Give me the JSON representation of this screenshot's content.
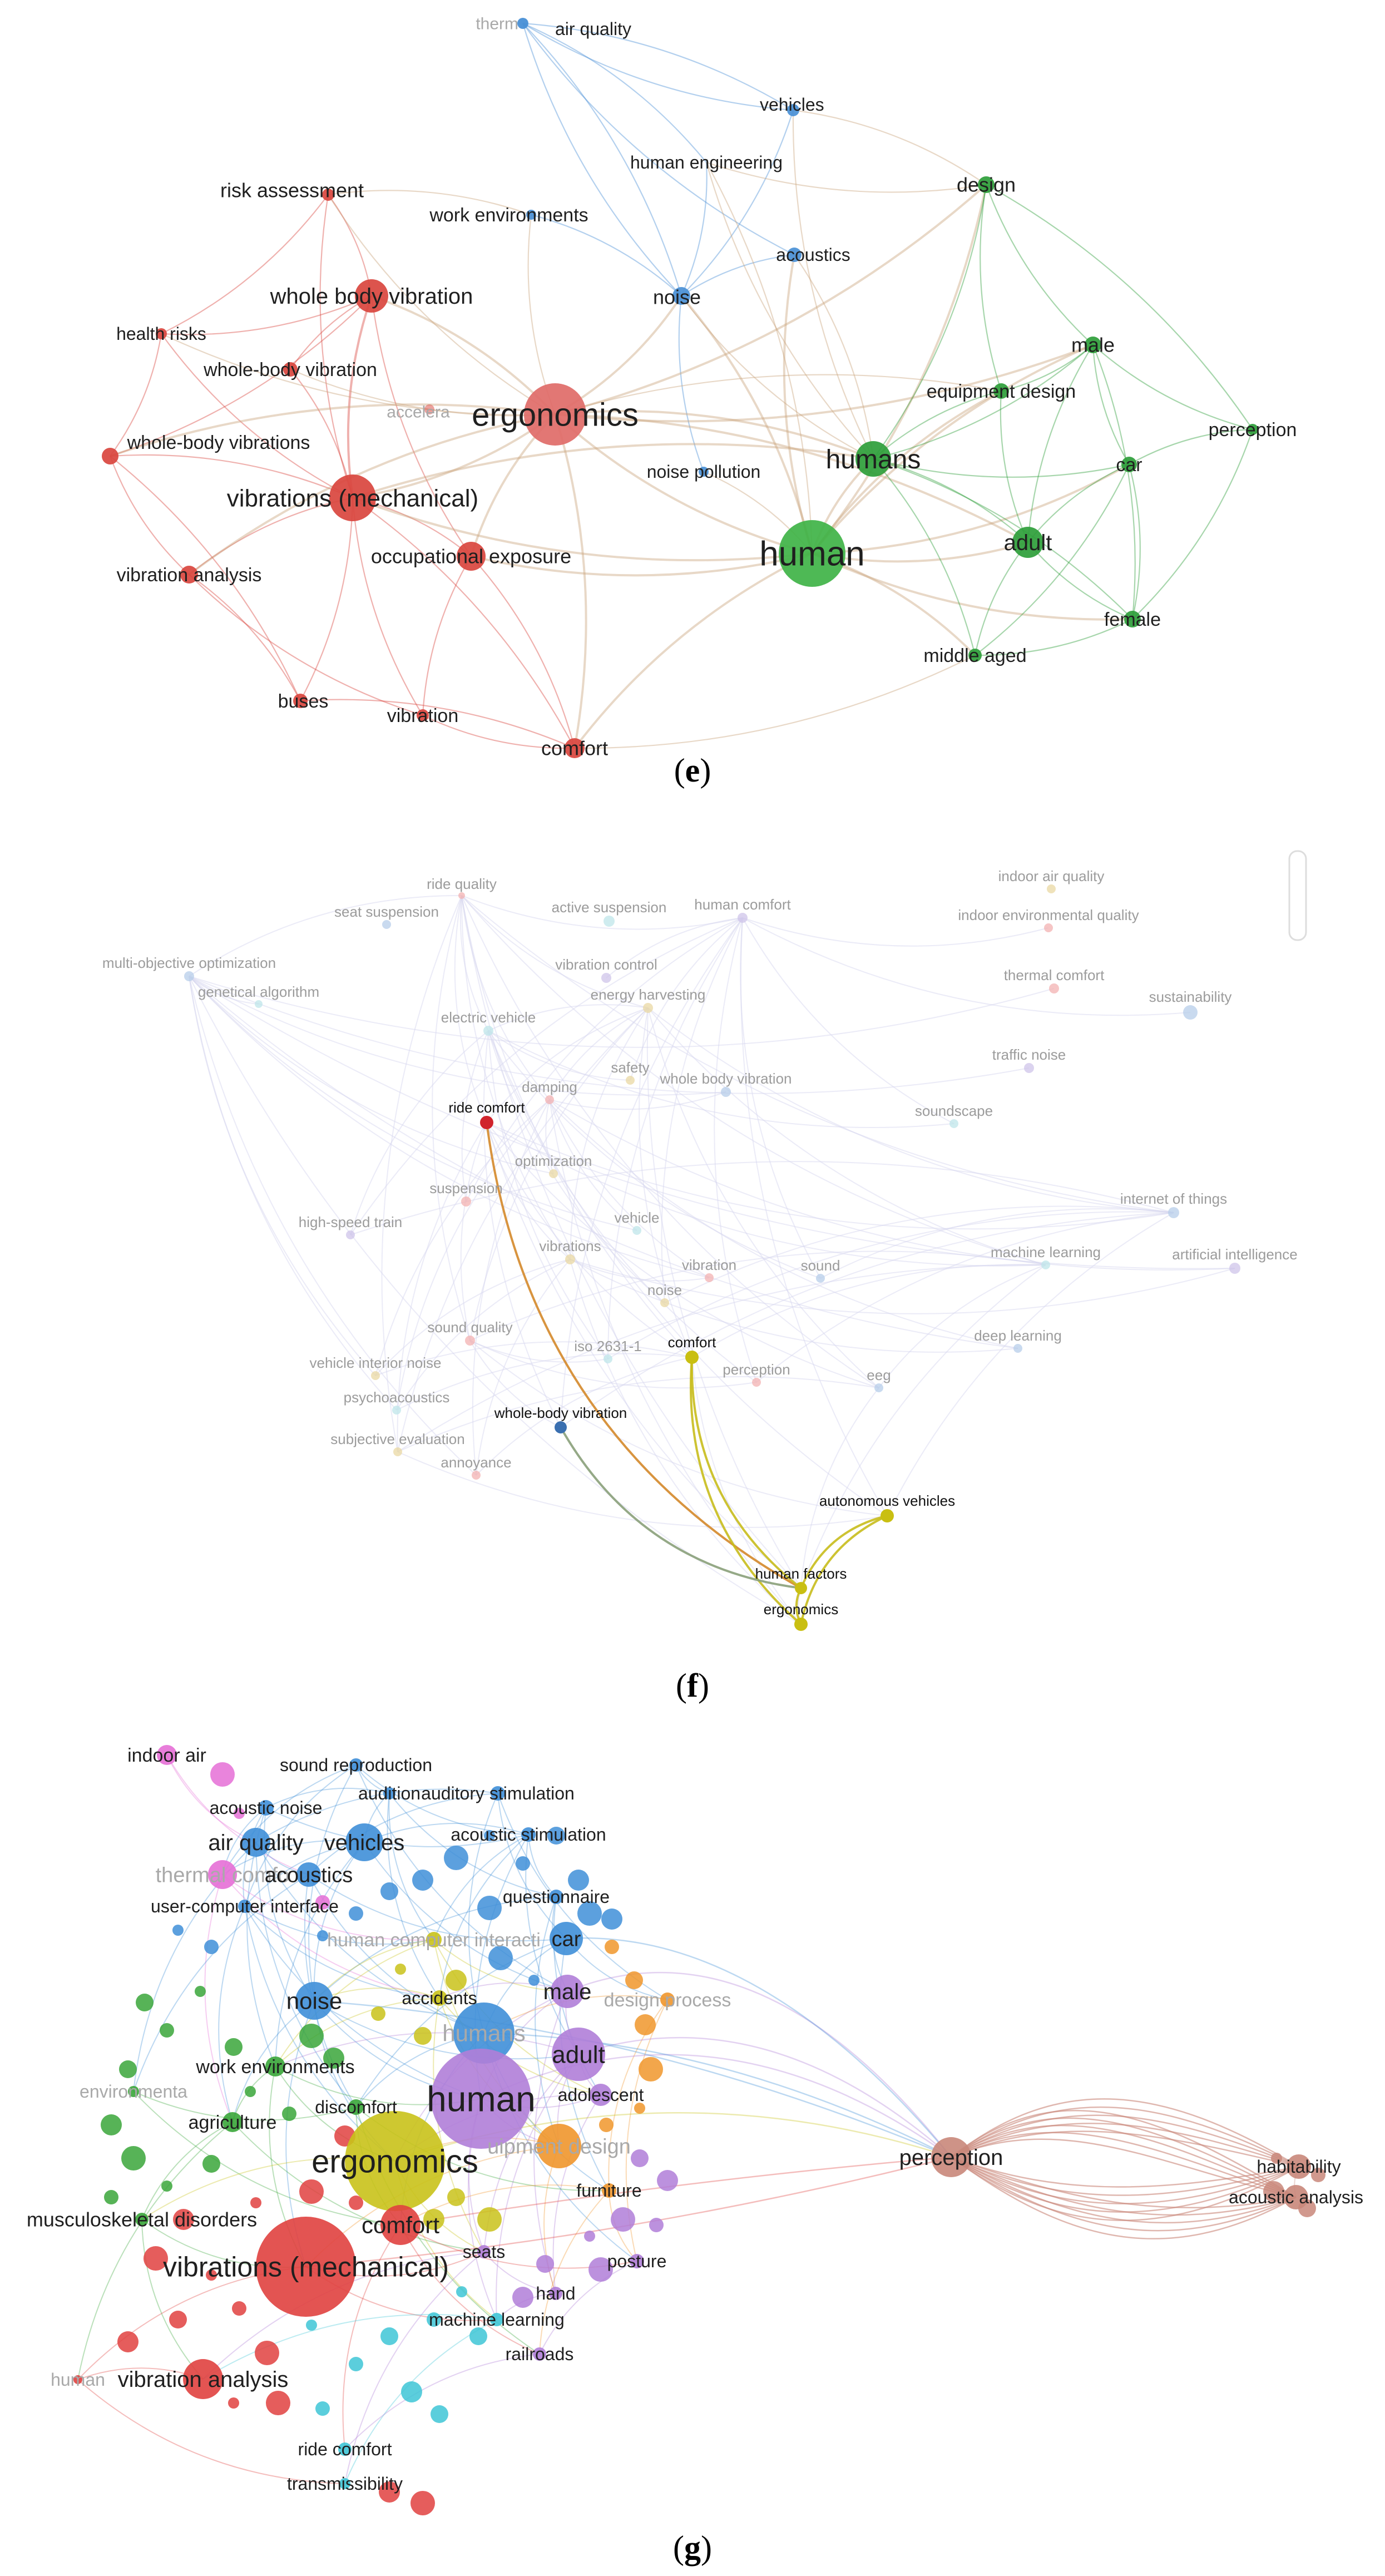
{
  "panels": [
    {
      "id": "e",
      "caption": "e",
      "colors": {
        "red": "#e8605f",
        "green": "#3fae3f",
        "blue": "#4a90d6",
        "tan": "#c8a27a"
      },
      "nodes": [
        {
          "key": "thermal",
          "label": "therm",
          "color": "#4a90d6",
          "faint": true
        },
        {
          "key": "airquality",
          "label": "air quality",
          "color": "#4a90d6"
        },
        {
          "key": "vehicles",
          "label": "vehicles",
          "color": "#4a90d6"
        },
        {
          "key": "humaneng",
          "label": "human engineering",
          "color": "#4a90d6"
        },
        {
          "key": "workenv",
          "label": "work environments",
          "color": "#4a90d6"
        },
        {
          "key": "acoustics",
          "label": "acoustics",
          "color": "#4a90d6"
        },
        {
          "key": "noise",
          "label": "noise",
          "color": "#4a90d6"
        },
        {
          "key": "noisepol",
          "label": "noise pollution",
          "color": "#4a90d6"
        },
        {
          "key": "riskassess",
          "label": "risk assessment",
          "color": "#d9453e"
        },
        {
          "key": "wbv",
          "label": "whole body vibration",
          "color": "#d9453e"
        },
        {
          "key": "healthrisk",
          "label": "health risks",
          "color": "#d9453e"
        },
        {
          "key": "wbvhyph",
          "label": "whole-body vibration",
          "color": "#d9453e"
        },
        {
          "key": "acceler",
          "label": "accelera",
          "color": "#d9453e",
          "faint": true
        },
        {
          "key": "ergonomics",
          "label": "ergonomics",
          "color": "#e06b68"
        },
        {
          "key": "wbvs",
          "label": "whole-body vibrations",
          "color": "#d9453e"
        },
        {
          "key": "vibmech",
          "label": "vibrations (mechanical)",
          "color": "#d9453e"
        },
        {
          "key": "occexp",
          "label": "occupational exposure",
          "color": "#d9453e"
        },
        {
          "key": "vibanal",
          "label": "vibration analysis",
          "color": "#d9453e"
        },
        {
          "key": "buses",
          "label": "buses",
          "color": "#d9453e"
        },
        {
          "key": "vibration",
          "label": "vibration",
          "color": "#d9453e"
        },
        {
          "key": "comfort",
          "label": "comfort",
          "color": "#d9453e"
        },
        {
          "key": "design",
          "label": "design",
          "color": "#2e9e3a"
        },
        {
          "key": "male",
          "label": "male",
          "color": "#2e9e3a"
        },
        {
          "key": "equipdesign",
          "label": "equipment design",
          "color": "#2e9e3a"
        },
        {
          "key": "perception",
          "label": "perception",
          "color": "#2e9e3a"
        },
        {
          "key": "humans",
          "label": "humans",
          "color": "#2e9e3a"
        },
        {
          "key": "car",
          "label": "car",
          "color": "#2e9e3a"
        },
        {
          "key": "human",
          "label": "human",
          "color": "#3fb347"
        },
        {
          "key": "adult",
          "label": "adult",
          "color": "#2e9e3a"
        },
        {
          "key": "female",
          "label": "female",
          "color": "#2e9e3a"
        },
        {
          "key": "middleaged",
          "label": "middle aged",
          "color": "#2e9e3a"
        }
      ]
    },
    {
      "id": "f",
      "caption": "f",
      "nodes": [
        {
          "key": "ridequality",
          "label": "ride quality"
        },
        {
          "key": "seatsusp",
          "label": "seat suspension"
        },
        {
          "key": "activesusp",
          "label": "active suspension"
        },
        {
          "key": "humancomfort",
          "label": "human comfort"
        },
        {
          "key": "indoorair",
          "label": "indoor air quality"
        },
        {
          "key": "indoorenv",
          "label": "indoor environmental quality"
        },
        {
          "key": "moo",
          "label": "multi-objective optimization"
        },
        {
          "key": "ga",
          "label": "genetical algorithm"
        },
        {
          "key": "vibcontrol",
          "label": "vibration control"
        },
        {
          "key": "energyharv",
          "label": "energy harvesting"
        },
        {
          "key": "thermalcomfort",
          "label": "thermal comfort"
        },
        {
          "key": "sustain",
          "label": "sustainability"
        },
        {
          "key": "electricveh",
          "label": "electric vehicle"
        },
        {
          "key": "trafficnoise",
          "label": "traffic noise"
        },
        {
          "key": "safety",
          "label": "safety"
        },
        {
          "key": "damping",
          "label": "damping"
        },
        {
          "key": "wbv",
          "label": "whole body vibration"
        },
        {
          "key": "soundscape",
          "label": "soundscape"
        },
        {
          "key": "ridecomfort",
          "label": "ride comfort",
          "highlight": true
        },
        {
          "key": "optimization",
          "label": "optimization"
        },
        {
          "key": "suspension",
          "label": "suspension"
        },
        {
          "key": "iot",
          "label": "internet of things"
        },
        {
          "key": "vehicle",
          "label": "vehicle"
        },
        {
          "key": "hst",
          "label": "high-speed train"
        },
        {
          "key": "vibrations",
          "label": "vibrations"
        },
        {
          "key": "vibration",
          "label": "vibration"
        },
        {
          "key": "sound",
          "label": "sound"
        },
        {
          "key": "ml",
          "label": "machine learning"
        },
        {
          "key": "ai",
          "label": "artificial intelligence"
        },
        {
          "key": "noise",
          "label": "noise"
        },
        {
          "key": "soundquality",
          "label": "sound quality"
        },
        {
          "key": "dl",
          "label": "deep learning"
        },
        {
          "key": "iso",
          "label": "iso 2631-1"
        },
        {
          "key": "comfort",
          "label": "comfort",
          "highlight": true
        },
        {
          "key": "vin",
          "label": "vehicle interior noise"
        },
        {
          "key": "perception",
          "label": "perception"
        },
        {
          "key": "eeg",
          "label": "eeg"
        },
        {
          "key": "psycho",
          "label": "psychoacoustics"
        },
        {
          "key": "wbvhyph",
          "label": "whole-body vibration",
          "highlight": true
        },
        {
          "key": "subjeval",
          "label": "subjective evaluation"
        },
        {
          "key": "annoyance",
          "label": "annoyance"
        },
        {
          "key": "autoveh",
          "label": "autonomous vehicles",
          "highlight": true
        },
        {
          "key": "humanfactors",
          "label": "human factors",
          "highlight": true
        },
        {
          "key": "ergonomics",
          "label": "ergonomics",
          "highlight": true
        }
      ]
    },
    {
      "id": "g",
      "caption": "g",
      "nodes": [
        {
          "key": "indoorair",
          "label": "indoor air"
        },
        {
          "key": "soundrepro",
          "label": "sound reproduction"
        },
        {
          "key": "audition",
          "label": "audition"
        },
        {
          "key": "auditorystim",
          "label": "auditory stimulation"
        },
        {
          "key": "acousticnoise",
          "label": "acoustic noise"
        },
        {
          "key": "acousticstim",
          "label": "acoustic stimulation"
        },
        {
          "key": "airquality",
          "label": "air quality"
        },
        {
          "key": "vehicles",
          "label": "vehicles"
        },
        {
          "key": "thermalcomfort",
          "label": "thermal comfo",
          "faint": true
        },
        {
          "key": "acoustics",
          "label": "acoustics"
        },
        {
          "key": "questionnaire",
          "label": "questionnaire"
        },
        {
          "key": "uci",
          "label": "user-computer interface"
        },
        {
          "key": "car",
          "label": "car"
        },
        {
          "key": "hci",
          "label": "human computer interacti",
          "faint": true
        },
        {
          "key": "male",
          "label": "male"
        },
        {
          "key": "designprocess",
          "label": "design process",
          "faint": true
        },
        {
          "key": "accidents",
          "label": "accidents"
        },
        {
          "key": "noise",
          "label": "noise"
        },
        {
          "key": "humans",
          "label": "humans",
          "faint": true
        },
        {
          "key": "adult",
          "label": "adult"
        },
        {
          "key": "workenv",
          "label": "work environments"
        },
        {
          "key": "envmon",
          "label": "environmenta",
          "faint": true
        },
        {
          "key": "human",
          "label": "human"
        },
        {
          "key": "adolescent",
          "label": "adolescent"
        },
        {
          "key": "discomfort",
          "label": "discomfort"
        },
        {
          "key": "agriculture",
          "label": "agriculture"
        },
        {
          "key": "equipdesign",
          "label": "uipment design",
          "faint": true
        },
        {
          "key": "perception",
          "label": "perception"
        },
        {
          "key": "ergonomics",
          "label": "ergonomics"
        },
        {
          "key": "habitability",
          "label": "habitability"
        },
        {
          "key": "furniture",
          "label": "furniture"
        },
        {
          "key": "acousticanal",
          "label": "acoustic analysis"
        },
        {
          "key": "msd",
          "label": "musculoskeletal disorders"
        },
        {
          "key": "comfort",
          "label": "comfort"
        },
        {
          "key": "vibmech",
          "label": "vibrations (mechanical)"
        },
        {
          "key": "seats",
          "label": "seats"
        },
        {
          "key": "posture",
          "label": "posture"
        },
        {
          "key": "hand",
          "label": "hand"
        },
        {
          "key": "ml",
          "label": "machine learning"
        },
        {
          "key": "railroads",
          "label": "railroads"
        },
        {
          "key": "vibanal",
          "label": "vibration analysis"
        },
        {
          "key": "humanfaint",
          "label": "human",
          "faint": true
        },
        {
          "key": "ridecomfort",
          "label": "ride comfort"
        },
        {
          "key": "transmiss",
          "label": "transmissibility"
        }
      ]
    }
  ]
}
